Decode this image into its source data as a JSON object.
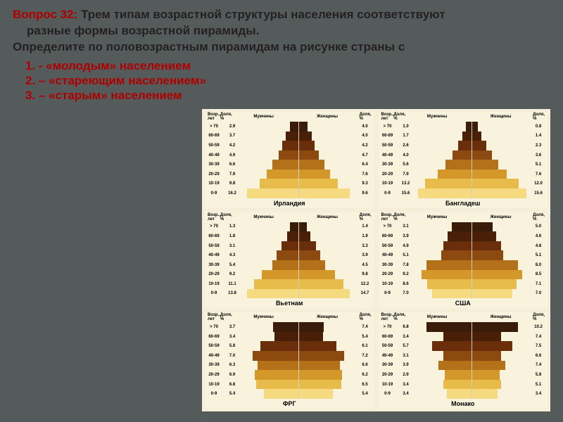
{
  "question": {
    "number": "Вопрос 32:",
    "text1": " Трем типам возрастной структуры населения соответствуют",
    "text2": "разные формы возрастной пирамиды.",
    "text3": "Определите по половозрастным пирамидам на рисунке страны с",
    "answers": [
      "1. - «молодым» населением",
      "2. – «стареющим населением»",
      "3. – «старым» населением"
    ]
  },
  "chartStyle": {
    "bandColors": [
      "#3a1c0a",
      "#4a1f08",
      "#6a2f0a",
      "#8c4a10",
      "#b5701a",
      "#d4972a",
      "#e8bc4a",
      "#f5da80"
    ],
    "background": "#f5eed8",
    "cellBackground": "#f9f3dd",
    "labelFontSize": 6,
    "countryFontSize": 9
  },
  "headersLeft": "Возр.,\nлет",
  "headersPct": "Доля,\n%",
  "headerM": "Мужчины",
  "headerF": "Женщины",
  "ageLabels": [
    "> 70",
    "60-69",
    "50-59",
    "40-49",
    "30-39",
    "20-29",
    "10-19",
    "0-9"
  ],
  "countries": [
    {
      "name": "Ирландия",
      "pctL": [
        "2.9",
        "3.7",
        "4.2",
        "4.9",
        "6.6",
        "7.9",
        "9.8",
        "16.2"
      ],
      "pctR": [
        "4.0",
        "4.0",
        "4.2",
        "4.7",
        "6.4",
        "7.6",
        "9.3",
        "9.6"
      ],
      "bars": [
        15,
        22,
        28,
        35,
        45,
        55,
        68,
        90
      ]
    },
    {
      "name": "Бангладеш",
      "pctL": [
        "1.0",
        "1.7",
        "2.6",
        "4.0",
        "5.6",
        "7.9",
        "13.2",
        "15.6"
      ],
      "pctR": [
        "0.8",
        "1.4",
        "2.3",
        "3.6",
        "5.1",
        "7.6",
        "12.0",
        "15.6"
      ],
      "bars": [
        10,
        16,
        24,
        34,
        46,
        60,
        82,
        95
      ]
    },
    {
      "name": "Вьетнам",
      "pctL": [
        "1.3",
        "1.8",
        "3.1",
        "4.3",
        "5.4",
        "9.2",
        "11.1",
        "13.8"
      ],
      "pctR": [
        "1.4",
        "1.9",
        "3.3",
        "3.9",
        "4.5",
        "9.8",
        "12.2",
        "14.7"
      ],
      "bars": [
        14,
        20,
        30,
        38,
        46,
        64,
        78,
        90
      ]
    },
    {
      "name": "США",
      "pctL": [
        "3.1",
        "3.9",
        "4.9",
        "5.1",
        "7.8",
        "9.2",
        "8.6",
        "7.0"
      ],
      "pctR": [
        "5.0",
        "4.6",
        "4.8",
        "5.1",
        "8.0",
        "8.5",
        "7.1",
        "7.0"
      ],
      "bars": [
        35,
        42,
        50,
        54,
        80,
        88,
        78,
        70
      ]
    },
    {
      "name": "ФРГ",
      "pctL": [
        "3.7",
        "3.4",
        "5.8",
        "7.0",
        "6.3",
        "6.9",
        "6.8",
        "5.4"
      ],
      "pctR": [
        "7.4",
        "5.4",
        "6.1",
        "7.2",
        "6.6",
        "6.2",
        "6.5",
        "5.4"
      ],
      "bars": [
        44,
        42,
        66,
        80,
        72,
        76,
        74,
        60
      ]
    },
    {
      "name": "Монако",
      "pctL": [
        "6.8",
        "3.4",
        "5.7",
        "3.1",
        "3.9",
        "2.9",
        "3.4",
        "3.4"
      ],
      "pctR": [
        "10.2",
        "7.4",
        "7.5",
        "6.6",
        "7.4",
        "5.8",
        "5.1",
        "3.4"
      ],
      "bars": [
        80,
        50,
        70,
        50,
        58,
        48,
        50,
        44
      ]
    }
  ]
}
